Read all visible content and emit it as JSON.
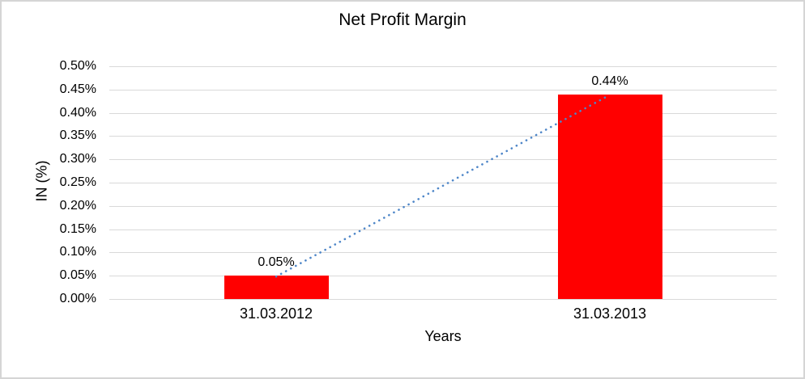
{
  "chart_data": {
    "type": "bar",
    "title": "Net Profit Margin",
    "xlabel": "Years",
    "ylabel": "IN (%)",
    "categories": [
      "31.03.2012",
      "31.03.2013"
    ],
    "series": [
      {
        "name": "Net Profit Margin",
        "values": [
          0.05,
          0.44
        ]
      }
    ],
    "data_labels": [
      "0.05%",
      "0.44%"
    ],
    "y_ticks": [
      "0.50%",
      "0.45%",
      "0.40%",
      "0.35%",
      "0.30%",
      "0.25%",
      "0.20%",
      "0.15%",
      "0.10%",
      "0.05%",
      "0.00%"
    ],
    "ylim": [
      0,
      0.5
    ],
    "grid": true,
    "legend": "none",
    "trendline": {
      "type": "linear",
      "style": "dotted",
      "points": [
        [
          0,
          0.05
        ],
        [
          1,
          0.44
        ]
      ]
    },
    "colors": {
      "bar": "#FF0000",
      "trendline": "#4E86C8",
      "gridline": "#D9D9D9",
      "text": "#000000",
      "border": "#D5D5D5",
      "background": "#FFFFFF"
    }
  }
}
